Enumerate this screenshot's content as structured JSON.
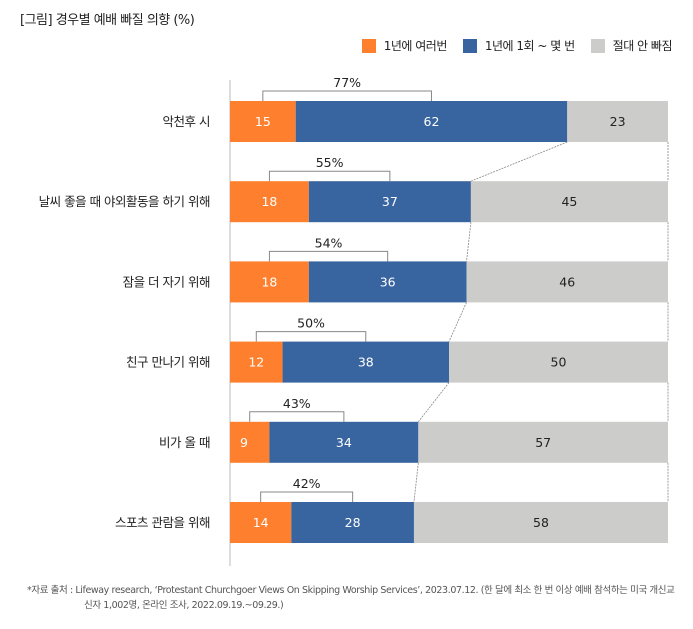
{
  "title": "[그림] 경우별 예배 빠질 의향 (%)",
  "legend": [
    {
      "label": "1년에 여러번",
      "color": "#FE7F2D"
    },
    {
      "label": "1년에 1회 ~ 몇 번",
      "color": "#3865A0"
    },
    {
      "label": "절대 안 빠짐",
      "color": "#CCCCCB"
    }
  ],
  "chart_data": {
    "type": "bar",
    "orientation": "horizontal",
    "stacked": true,
    "title": "[그림] 경우별 예배 빠질 의향 (%)",
    "xlabel": "",
    "ylabel": "",
    "xlim": [
      0,
      100
    ],
    "grid": false,
    "legend_position": "top-right",
    "categories": [
      "악천후 시",
      "날씨 좋을 때 야외활동을 하기 위해",
      "잠을 더 자기 위해",
      "친구 만나기 위해",
      "비가 올 때",
      "스포츠 관람을 위해"
    ],
    "series": [
      {
        "name": "1년에 여러번",
        "color": "#FE7F2D",
        "values": [
          15,
          18,
          18,
          12,
          9,
          14
        ]
      },
      {
        "name": "1년에 1회 ~ 몇 번",
        "color": "#3865A0",
        "values": [
          62,
          37,
          36,
          38,
          34,
          28
        ]
      },
      {
        "name": "절대 안 빠짐",
        "color": "#CCCCCB",
        "values": [
          23,
          45,
          46,
          50,
          57,
          58
        ]
      }
    ],
    "sum_labels": [
      "77%",
      "55%",
      "54%",
      "50%",
      "43%",
      "42%"
    ]
  },
  "footnote": {
    "line1": "*자료 출처 : Lifeway research, ‘Protestant Churchgoer Views On Skipping Worship Services’, 2023.07.12. (한 달에 최소 한 번 이상 예배 참석하는 미국 개신교",
    "line2": "신자 1,002명, 온라인 조사, 2022.09.19.~09.29.)"
  }
}
